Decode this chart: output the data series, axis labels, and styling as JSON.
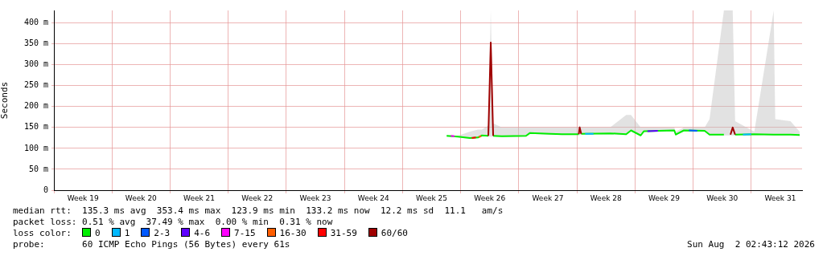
{
  "chart_data": {
    "type": "line",
    "ylabel": "Seconds",
    "legend_title": "loss color:",
    "legend": "bottom",
    "grid": true,
    "marker": "none",
    "xlim": [
      "2026-05-04",
      "2026-08-02T03:00"
    ],
    "xticks": [
      {
        "value": "2026-05-04",
        "label": null
      },
      {
        "value": "2026-05-07T12:00",
        "label": "Week 19"
      },
      {
        "value": "2026-05-11",
        "label": null
      },
      {
        "value": "2026-05-14T12:00",
        "label": "Week 20"
      },
      {
        "value": "2026-05-18",
        "label": null
      },
      {
        "value": "2026-05-21T12:00",
        "label": "Week 21"
      },
      {
        "value": "2026-05-25",
        "label": null
      },
      {
        "value": "2026-05-28T12:00",
        "label": "Week 22"
      },
      {
        "value": "2026-06-01",
        "label": null
      },
      {
        "value": "2026-06-04T12:00",
        "label": "Week 23"
      },
      {
        "value": "2026-06-08",
        "label": null
      },
      {
        "value": "2026-06-11T12:00",
        "label": "Week 24"
      },
      {
        "value": "2026-06-15",
        "label": null
      },
      {
        "value": "2026-06-18T12:00",
        "label": "Week 25"
      },
      {
        "value": "2026-06-22",
        "label": null
      },
      {
        "value": "2026-06-25T12:00",
        "label": "Week 26"
      },
      {
        "value": "2026-06-29",
        "label": null
      },
      {
        "value": "2026-07-02T12:00",
        "label": "Week 27"
      },
      {
        "value": "2026-07-06",
        "label": null
      },
      {
        "value": "2026-07-09T12:00",
        "label": "Week 28"
      },
      {
        "value": "2026-07-13",
        "label": null
      },
      {
        "value": "2026-07-16T12:00",
        "label": "Week 29"
      },
      {
        "value": "2026-07-20",
        "label": null
      },
      {
        "value": "2026-07-23T12:00",
        "label": "Week 30"
      },
      {
        "value": "2026-07-27",
        "label": null
      },
      {
        "value": "2026-07-30T12:00",
        "label": "Week 31"
      }
    ],
    "ylim": [
      0,
      430
    ],
    "yticks": [
      0,
      {
        "value": 50,
        "label": "50 m"
      },
      {
        "value": 100,
        "label": "100 m"
      },
      {
        "value": 150,
        "label": "150 m"
      },
      {
        "value": 200,
        "label": "200 m"
      },
      {
        "value": 250,
        "label": "250 m"
      },
      {
        "value": 300,
        "label": "300 m"
      },
      {
        "value": 350,
        "label": "350 m"
      },
      {
        "value": 400,
        "label": "400 m"
      }
    ],
    "series": [
      {
        "name": "0",
        "color": "#00ee00",
        "x": [
          "2026-06-20T07:30",
          "2026-06-21T16:00",
          "2026-06-23T02:45",
          "2026-06-24T02:00",
          "2026-06-24T13:30",
          "2026-06-25T08:00",
          "2026-06-25T15:00",
          "2026-06-25T22:00",
          "2026-06-26T23:15",
          "2026-06-29T21:00",
          "2026-06-30T08:30",
          "2026-07-02T18:30",
          "2026-07-04T05:00",
          "2026-07-06T05:30",
          "2026-07-06T08:00",
          "2026-07-06T12:30",
          "2026-07-10T00:00",
          "2026-07-11T22:30",
          "2026-07-12T12:30",
          "2026-07-13T16:30",
          "2026-07-14T01:30",
          "2026-07-17T17:30",
          "2026-07-17T22:00",
          "2026-07-18T21:15",
          "2026-07-21T09:30",
          "2026-07-21T23:30",
          "2026-07-23T17:00",
          "2026-07-24T18:30",
          "2026-07-25T01:30",
          "2026-07-27T09:00",
          "2026-07-29T17:00",
          "2026-07-29T21:30",
          "2026-07-31T17:30",
          "2026-08-01T20:00"
        ],
        "values": [
          130,
          128,
          125,
          126,
          131,
          130,
          null,
          130,
          129,
          130,
          137,
          135,
          134,
          134,
          null,
          135,
          136,
          134,
          143,
          131,
          141,
          143,
          133,
          143,
          142,
          133,
          133,
          null,
          133,
          134,
          133,
          133,
          133,
          132
        ],
        "lower": [
          128,
          126,
          123,
          124,
          129,
          128,
          128,
          128,
          127,
          128,
          135,
          133,
          132,
          132,
          132,
          133,
          134,
          132,
          141,
          129,
          139,
          141,
          131,
          141,
          140,
          131,
          131,
          131,
          131,
          132,
          131,
          131,
          131,
          130
        ],
        "upper": [
          132,
          130,
          140,
          145,
          145,
          155,
          430,
          160,
          150,
          150,
          150,
          150,
          150,
          150,
          155,
          150,
          150,
          180,
          180,
          150,
          150,
          150,
          140,
          150,
          150,
          170,
          430,
          430,
          165,
          140,
          430,
          170,
          165,
          140
        ]
      },
      {
        "name": "1",
        "color": "#00b8ff",
        "x": [
          "2026-07-07T00:00",
          "2026-07-08T00:00",
          "2026-07-08T01:00",
          "2026-07-26T00:00",
          "2026-07-27T00:00"
        ],
        "values": [
          135,
          135,
          null,
          133,
          134
        ]
      },
      {
        "name": "2-3",
        "color": "#0059ff",
        "x": [
          "2026-07-19T12:00",
          "2026-07-20T12:00"
        ],
        "values": [
          143,
          142
        ]
      },
      {
        "name": "4-6",
        "color": "#5e00ff",
        "x": [
          "2026-07-14T12:00",
          "2026-07-15T18:00"
        ],
        "values": [
          141,
          142
        ]
      },
      {
        "name": "7-15",
        "color": "#ff00ff",
        "x": [
          "2026-06-20T20:00",
          "2026-06-21T06:00"
        ],
        "values": [
          130,
          129
        ]
      },
      {
        "name": "16-30",
        "color": "#ff5e00",
        "x": [
          "2026-06-24T04:00",
          "2026-06-24T11:30"
        ],
        "values": [
          127,
          130
        ]
      },
      {
        "name": "31-59",
        "color": "#ff0000",
        "x": [
          "2026-06-23T08:00",
          "2026-06-23T20:00"
        ],
        "values": [
          125,
          126
        ]
      },
      {
        "name": "60/60",
        "color": "#a00000",
        "x": [
          "2026-06-25T08:00",
          "2026-06-25T15:00",
          "2026-06-25T22:00",
          "2026-06-26T00:00",
          "2026-07-06T05:30",
          "2026-07-06T08:00",
          "2026-07-06T12:30",
          "2026-07-07T00:00",
          "2026-07-24T12:00",
          "2026-07-24T18:30",
          "2026-07-25T01:30"
        ],
        "values": [
          130,
          353,
          130,
          null,
          134,
          150,
          135,
          null,
          133,
          150,
          133
        ]
      }
    ],
    "annotations": [
      "median rtt:  135.3 ms avg  353.4 ms max  123.9 ms min  133.2 ms now  12.2 ms sd  11.1   am/s",
      "packet loss: 0.51 % avg  37.49 % max  0.00 % min  0.31 % now",
      "probe:       60 ICMP Echo Pings (56 Bytes) every 61s",
      "Sun Aug  2 02:43:12 2026"
    ]
  }
}
